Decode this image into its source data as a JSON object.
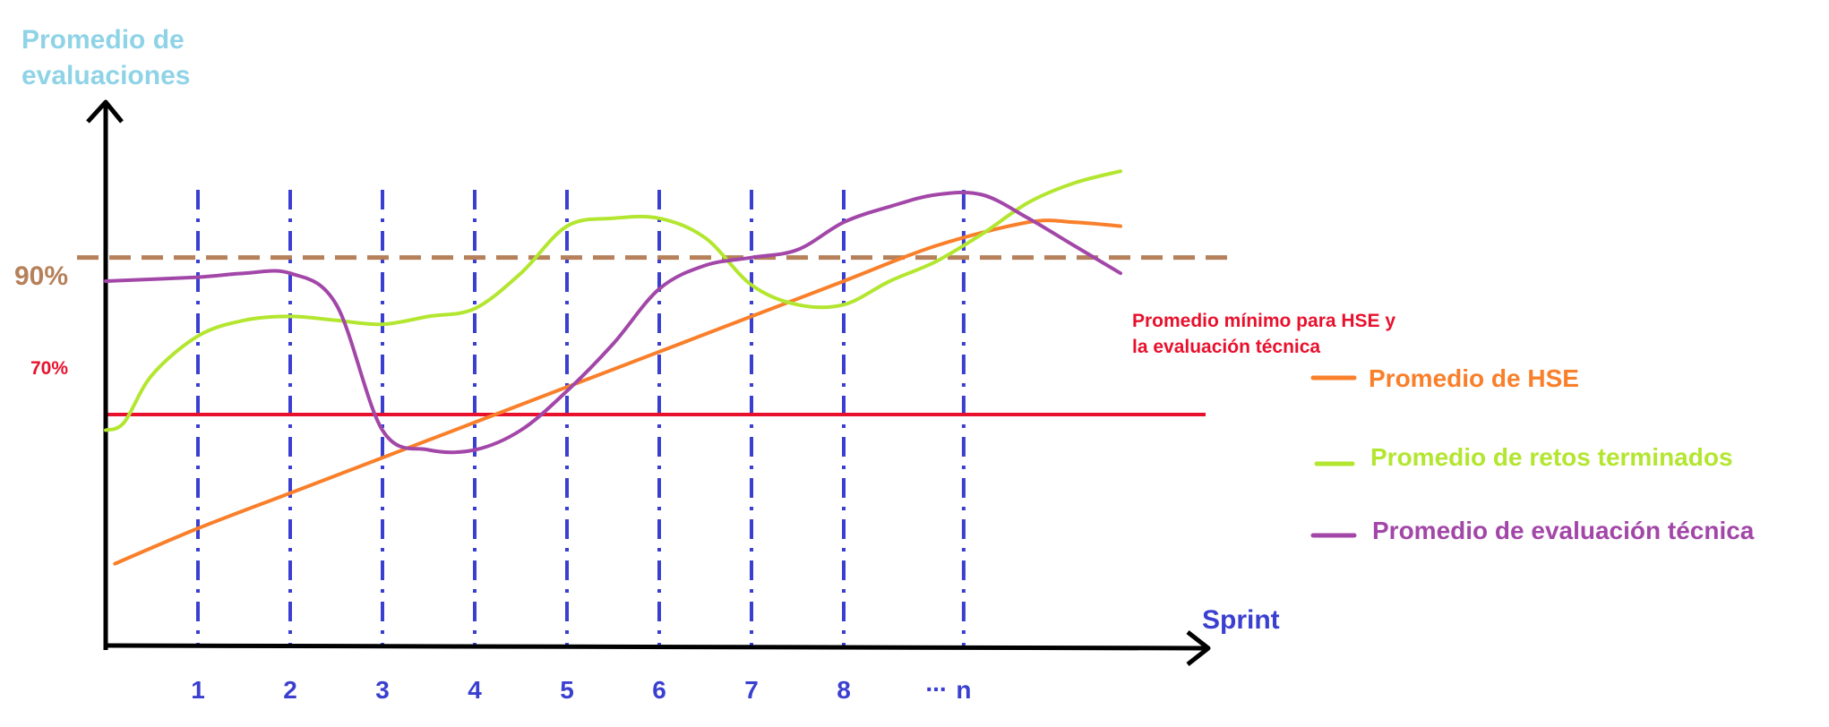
{
  "chart_data": {
    "type": "line",
    "title": "",
    "xlabel": "Sprint",
    "ylabel_lines": [
      "Promedio de",
      "evaluaciones"
    ],
    "categories": [
      "1",
      "2",
      "3",
      "4",
      "5",
      "6",
      "7",
      "8",
      "...",
      "n"
    ],
    "x_range": [
      0,
      11.2
    ],
    "ylim": [
      40,
      100
    ],
    "y_ticks": [
      {
        "value": 90,
        "label": "90%"
      },
      {
        "value": 70,
        "label": "70%"
      }
    ],
    "grid_vertical": true,
    "reference_lines": [
      {
        "label": "90%",
        "value": 90,
        "style": "dashed",
        "color": "#b5805a"
      },
      {
        "label": "70%",
        "value": 70,
        "style": "solid",
        "color": "#e8112d"
      }
    ],
    "annotation": {
      "lines": [
        "Promedio mínimo para HSE y",
        "la evaluación técnica"
      ],
      "color": "#e8112d"
    },
    "legend_position": "right",
    "series": [
      {
        "name": "Promedio de HSE",
        "color": "#f97f2a",
        "x": [
          0.1,
          1,
          2,
          3,
          4,
          5,
          6,
          7,
          8,
          9,
          10,
          10.5,
          11
        ],
        "y": [
          51,
          55.5,
          60,
          64.5,
          69,
          73.5,
          78,
          82.5,
          87,
          91.5,
          94.5,
          94.5,
          94
        ]
      },
      {
        "name": "Promedio de retos terminados",
        "color": "#b3e62f",
        "x": [
          0,
          0.2,
          0.5,
          1,
          1.5,
          2,
          2.5,
          3,
          3.5,
          4,
          4.5,
          5,
          5.5,
          6,
          6.5,
          7,
          7.5,
          8,
          8.5,
          9,
          9.5,
          10,
          10.5,
          11
        ],
        "y": [
          68,
          69,
          75,
          80,
          82,
          82.5,
          82,
          81.5,
          82.5,
          83.5,
          88,
          94,
          95,
          95,
          92.5,
          86.5,
          84,
          84,
          87,
          89.5,
          93,
          97,
          99.5,
          101
        ]
      },
      {
        "name": "Promedio de evaluación técnica",
        "color": "#a247a8",
        "x": [
          0,
          1,
          1.5,
          2,
          2.5,
          3,
          3.5,
          4,
          4.5,
          5,
          5.5,
          6,
          6.5,
          7,
          7.5,
          8,
          8.5,
          9,
          9.5,
          10,
          10.5,
          11
        ],
        "y": [
          87,
          87.5,
          88,
          88,
          84,
          68,
          65.5,
          65.5,
          68,
          73,
          79,
          86,
          89,
          90,
          91,
          94.5,
          96.5,
          98,
          98,
          95,
          91.5,
          88
        ]
      }
    ]
  }
}
